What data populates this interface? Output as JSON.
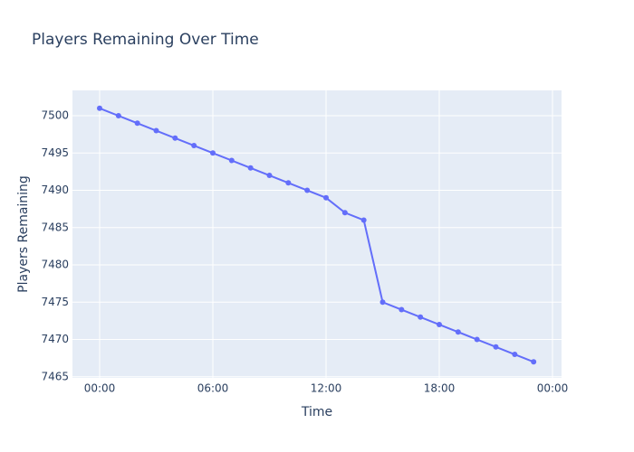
{
  "chart_data": {
    "type": "line",
    "title": "Players Remaining Over Time",
    "x_label": "Time",
    "y_label": "Players Remaining",
    "x": [
      0,
      1,
      2,
      3,
      4,
      5,
      6,
      7,
      8,
      9,
      10,
      11,
      12,
      13,
      14,
      15,
      16,
      17,
      18,
      19,
      20,
      21,
      22,
      23
    ],
    "series": [
      {
        "name": "Players Remaining",
        "color": "#636efa",
        "values": [
          7501,
          7500,
          7499,
          7498,
          7497,
          7496,
          7495,
          7494,
          7493,
          7492,
          7491,
          7490,
          7489,
          7487,
          7486,
          7475,
          7474,
          7473,
          7472,
          7471,
          7470,
          7469,
          7468,
          7467
        ]
      }
    ],
    "xlim": [
      -1.44,
      24.48
    ],
    "xticks": [
      {
        "value": 0,
        "label": "00:00"
      },
      {
        "value": 6,
        "label": "06:00"
      },
      {
        "value": 12,
        "label": "12:00"
      },
      {
        "value": 18,
        "label": "18:00"
      },
      {
        "value": 24,
        "label": "00:00"
      }
    ],
    "ylim": [
      7464.85,
      7503.4
    ],
    "yticks": [
      7465,
      7470,
      7475,
      7480,
      7485,
      7490,
      7495,
      7500
    ],
    "grid": true
  }
}
